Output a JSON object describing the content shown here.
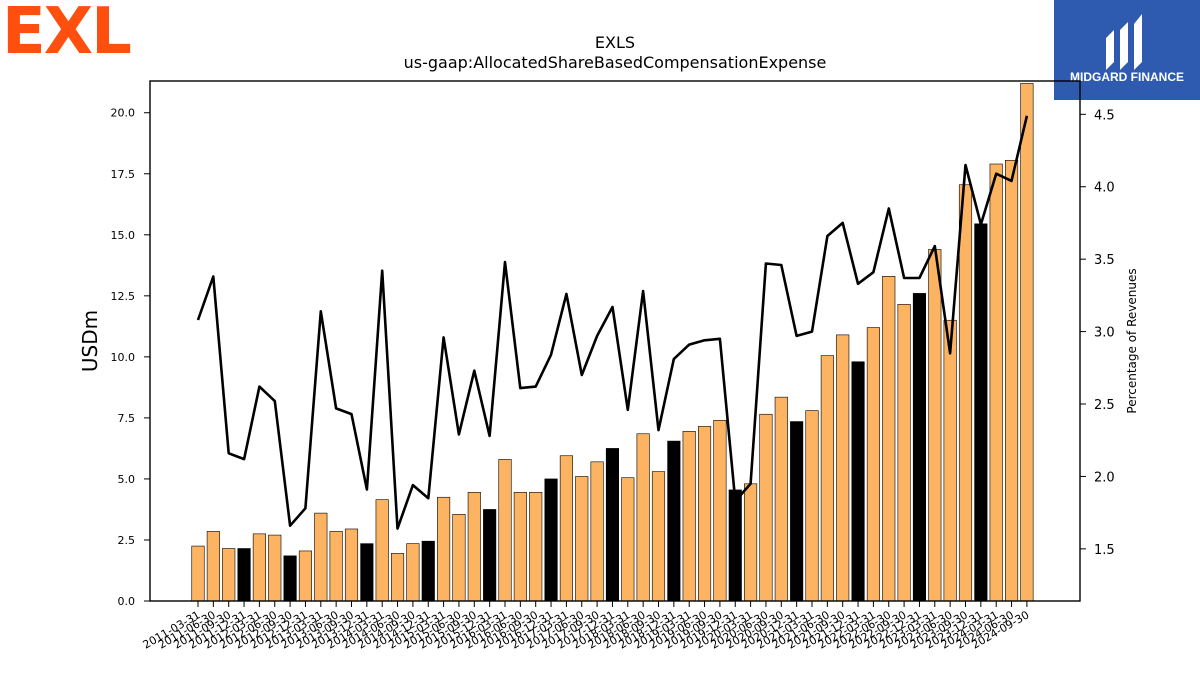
{
  "brand": {
    "left_logo_text": "EXL",
    "left_logo_color": "#FF4F0F",
    "right_logo_text": "MIDGARD FINANCE",
    "right_logo_bg": "#2E5BB0"
  },
  "chart_data": {
    "type": "bar",
    "title": "EXLS",
    "subtitle": "us-gaap:AllocatedShareBasedCompensationExpense",
    "ylabel": "USDm",
    "y2label": "Percentage of Revenues",
    "ylim": [
      0,
      21.3
    ],
    "y2lim": [
      1.14,
      4.73
    ],
    "yticks": [
      "0.0",
      "2.5",
      "5.0",
      "7.5",
      "10.0",
      "12.5",
      "15.0",
      "17.5",
      "20.0"
    ],
    "y2ticks": [
      "1.5",
      "2.0",
      "2.5",
      "3.0",
      "3.5",
      "4.0",
      "4.5"
    ],
    "bar_color": "#FDB462",
    "highlight_color": "#000000",
    "line_color": "#000000",
    "categories": [
      "2011-03-31",
      "2011-06-30",
      "2011-09-30",
      "2011-12-31",
      "2012-03-31",
      "2012-06-30",
      "2012-09-30",
      "2012-12-31",
      "2013-03-31",
      "2013-06-30",
      "2013-09-30",
      "2013-12-31",
      "2014-03-31",
      "2014-06-30",
      "2014-09-30",
      "2014-12-31",
      "2015-03-31",
      "2015-06-30",
      "2015-09-30",
      "2015-12-31",
      "2016-03-31",
      "2016-06-30",
      "2016-09-30",
      "2016-12-31",
      "2017-03-31",
      "2017-06-30",
      "2017-09-30",
      "2017-12-31",
      "2018-03-31",
      "2018-06-30",
      "2018-09-30",
      "2018-12-31",
      "2019-03-31",
      "2019-06-30",
      "2019-09-30",
      "2019-12-31",
      "2020-03-31",
      "2020-06-30",
      "2020-09-30",
      "2020-12-31",
      "2021-03-31",
      "2021-06-30",
      "2021-09-30",
      "2021-12-31",
      "2022-03-31",
      "2022-06-30",
      "2022-09-30",
      "2022-12-31",
      "2023-03-31",
      "2023-06-30",
      "2023-09-30",
      "2023-12-31",
      "2024-03-31",
      "2024-06-30",
      "2024-09-30"
    ],
    "x_tick_labels": [
      "2011-03-31",
      "2011-06-30",
      "2011-09-30",
      "2011-12-31",
      "2012-03-31",
      "2012-06-30",
      "2012-09-30",
      "2012-12-31",
      "2013-03-31",
      "2013-06-30",
      "2013-09-30",
      "2013-12-31",
      "2014-03-31",
      "2014-06-30",
      "2014-09-30",
      "2014-12-31",
      "2015-03-31",
      "2015-06-30",
      "2015-09-30",
      "2015-12-31",
      "2016-03-31",
      "2016-06-30",
      "2016-09-30",
      "2016-12-31",
      "2017-03-31",
      "2017-06-30",
      "2017-09-30",
      "2017-12-31",
      "2018-03-31",
      "2018-06-30",
      "2018-09-30",
      "2018-12-31",
      "2019-03-31",
      "2019-06-30",
      "2019-09-30",
      "2019-12-31",
      "2020-03-31",
      "2020-06-30",
      "2020-09-30",
      "2020-12-31",
      "2021-03-31",
      "2021-06-30",
      "2021-09-30",
      "2021-12-31",
      "2022-03-31",
      "2022-06-30",
      "2022-09-30",
      "2022-12-31",
      "2023-03-31",
      "2023-06-30",
      "2023-09-30",
      "2023-12-31",
      "2024-03-31",
      "2024-06-30",
      "2024-09-30"
    ],
    "series": [
      {
        "axis": "left",
        "type": "bar",
        "values": [
          2.25,
          2.85,
          2.15,
          2.15,
          2.75,
          2.7,
          1.85,
          2.05,
          3.6,
          2.85,
          2.95,
          2.35,
          4.15,
          1.95,
          2.35,
          2.45,
          4.25,
          3.55,
          4.45,
          3.75,
          5.8,
          4.45,
          4.45,
          5.0,
          5.95,
          5.1,
          5.7,
          6.25,
          5.05,
          6.85,
          5.3,
          6.55,
          6.95,
          7.15,
          7.4,
          4.55,
          4.8,
          7.65,
          8.35,
          7.35,
          7.8,
          10.05,
          10.9,
          9.8,
          11.2,
          13.3,
          12.15,
          12.6,
          14.4,
          11.5,
          17.05,
          15.45,
          17.9,
          18.05,
          21.2
        ],
        "highlighted": [
          false,
          false,
          false,
          true,
          false,
          false,
          true,
          false,
          false,
          false,
          false,
          true,
          false,
          false,
          false,
          true,
          false,
          false,
          false,
          true,
          false,
          false,
          false,
          true,
          false,
          false,
          false,
          true,
          false,
          false,
          false,
          true,
          false,
          false,
          false,
          true,
          false,
          false,
          false,
          true,
          false,
          false,
          false,
          true,
          false,
          false,
          false,
          true,
          false,
          false,
          false,
          true,
          false,
          false,
          false
        ]
      },
      {
        "axis": "right",
        "type": "line",
        "values": [
          3.08,
          3.38,
          2.16,
          2.12,
          2.62,
          2.52,
          1.66,
          1.78,
          3.14,
          2.47,
          2.43,
          1.91,
          3.42,
          1.64,
          1.94,
          1.85,
          2.96,
          2.29,
          2.73,
          2.28,
          3.48,
          2.61,
          2.62,
          2.84,
          3.26,
          2.7,
          2.97,
          3.17,
          2.46,
          3.28,
          2.32,
          2.81,
          2.91,
          2.94,
          2.95,
          1.83,
          1.95,
          3.47,
          3.46,
          2.97,
          3.0,
          3.66,
          3.75,
          3.33,
          3.41,
          3.85,
          3.37,
          3.37,
          3.59,
          2.85,
          4.15,
          3.74,
          4.09,
          4.04,
          4.49
        ]
      }
    ]
  }
}
